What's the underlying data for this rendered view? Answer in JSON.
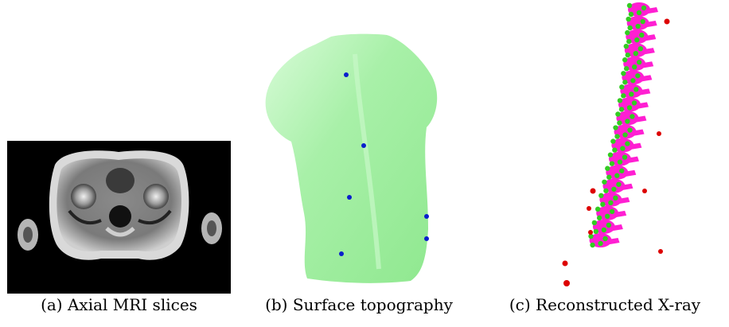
{
  "figure": {
    "captions": {
      "a": "(a) Axial MRI slices",
      "b": "(b) Surface topography",
      "c": "(c) Reconstructed X-ray"
    },
    "colors": {
      "mri_background": "#000000",
      "surface": "#b8f5b8",
      "surface_landmark": "#0a1ecc",
      "vertebrae": "#ff1fd2",
      "vertebra_landmark": "#33cc22",
      "outlier_point": "#dd0000"
    }
  }
}
